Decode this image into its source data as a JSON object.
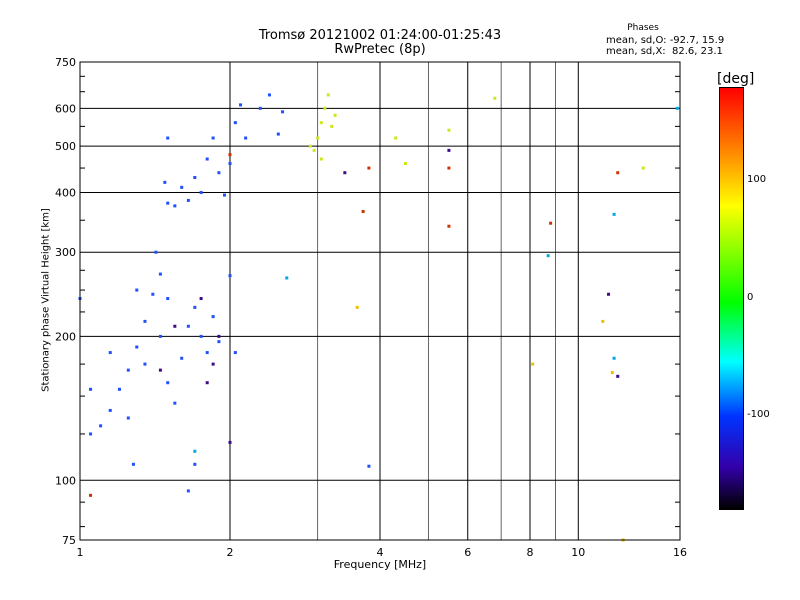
{
  "header": {
    "title_line1": "Tromsø 20121002 01:24:00-01:25:43",
    "title_line2": "RwPretec (8p)"
  },
  "phase_box": {
    "heading": "Phases",
    "line_o": "mean, sd,O: -92.7, 15.9",
    "line_x": "mean, sd,X:  82.6, 23.1"
  },
  "colorbar": {
    "title": "[deg]",
    "ticks": [
      "100",
      "0",
      "-100"
    ],
    "tick_values": [
      100,
      0,
      -100
    ],
    "range": [
      -180,
      180
    ],
    "colors": [
      "#ff0000",
      "#ff9900",
      "#ffff00",
      "#00ff00",
      "#00ffff",
      "#0033ff",
      "#3300aa",
      "#000000"
    ]
  },
  "chart_data": {
    "type": "scatter",
    "xlabel": "Frequency [MHz]",
    "ylabel": "Stationary phase Virtual Height [km]",
    "x_scale": "log",
    "y_scale": "log",
    "xlim": [
      1,
      16
    ],
    "ylim": [
      75,
      750
    ],
    "x_ticks": [
      1,
      2,
      4,
      6,
      8,
      10,
      16
    ],
    "x_tick_labels": [
      "1",
      "2",
      "4",
      "6",
      "8",
      "10",
      "16"
    ],
    "y_ticks": [
      75,
      100,
      200,
      300,
      400,
      500,
      600,
      750
    ],
    "y_tick_labels": [
      "75",
      "100",
      "200",
      "300",
      "400",
      "500",
      "600",
      "750"
    ],
    "grid": true,
    "series": [
      {
        "mode": "O",
        "color": "#1f4fff",
        "points": [
          [
            1.05,
            125
          ],
          [
            1.1,
            130
          ],
          [
            1.15,
            140
          ],
          [
            1.2,
            155
          ],
          [
            1.25,
            170
          ],
          [
            1.3,
            190
          ],
          [
            1.35,
            215
          ],
          [
            1.4,
            245
          ],
          [
            1.45,
            270
          ],
          [
            1.5,
            240
          ],
          [
            1.45,
            200
          ],
          [
            1.5,
            160
          ],
          [
            1.55,
            145
          ],
          [
            1.6,
            180
          ],
          [
            1.65,
            210
          ],
          [
            1.7,
            230
          ],
          [
            1.75,
            200
          ],
          [
            1.8,
            185
          ],
          [
            1.85,
            220
          ],
          [
            1.9,
            195
          ],
          [
            1.25,
            135
          ],
          [
            1.35,
            175
          ],
          [
            1.15,
            185
          ],
          [
            1.05,
            155
          ],
          [
            1.3,
            250
          ],
          [
            1.42,
            300
          ],
          [
            1.5,
            380
          ],
          [
            1.55,
            375
          ],
          [
            1.65,
            385
          ],
          [
            1.7,
            430
          ],
          [
            1.8,
            470
          ],
          [
            1.85,
            520
          ],
          [
            1.9,
            440
          ],
          [
            2.0,
            460
          ],
          [
            2.05,
            560
          ],
          [
            2.1,
            610
          ],
          [
            2.15,
            520
          ],
          [
            2.3,
            600
          ],
          [
            2.4,
            640
          ],
          [
            2.5,
            530
          ],
          [
            2.55,
            590
          ],
          [
            1.95,
            395
          ],
          [
            1.75,
            400
          ],
          [
            1.6,
            410
          ],
          [
            1.5,
            520
          ],
          [
            1.48,
            420
          ],
          [
            1.7,
            108
          ],
          [
            1.65,
            95
          ],
          [
            1.28,
            108
          ],
          [
            1.0,
            240
          ],
          [
            3.8,
            107
          ],
          [
            2.05,
            185
          ],
          [
            2.0,
            268
          ]
        ]
      },
      {
        "mode": "X",
        "color": "#cfe61a",
        "points": [
          [
            2.95,
            490
          ],
          [
            3.0,
            520
          ],
          [
            3.05,
            560
          ],
          [
            3.1,
            600
          ],
          [
            3.15,
            640
          ],
          [
            3.2,
            550
          ],
          [
            3.05,
            470
          ],
          [
            2.9,
            500
          ],
          [
            3.25,
            580
          ],
          [
            4.5,
            460
          ],
          [
            4.3,
            520
          ],
          [
            5.5,
            540
          ],
          [
            6.8,
            630
          ],
          [
            13.5,
            450
          ]
        ]
      },
      {
        "mode": "other",
        "color": "#cc3300",
        "points": [
          [
            12.0,
            440
          ],
          [
            5.5,
            340
          ],
          [
            3.8,
            450
          ],
          [
            5.5,
            450
          ],
          [
            8.8,
            345
          ],
          [
            1.05,
            93
          ],
          [
            2.0,
            480
          ],
          [
            3.7,
            365
          ]
        ]
      },
      {
        "mode": "other",
        "color": "#3a0a88",
        "points": [
          [
            1.8,
            160
          ],
          [
            1.75,
            240
          ],
          [
            1.9,
            200
          ],
          [
            1.85,
            175
          ],
          [
            2.0,
            120
          ],
          [
            1.45,
            170
          ],
          [
            1.55,
            210
          ],
          [
            11.5,
            245
          ],
          [
            12.0,
            165
          ],
          [
            3.4,
            440
          ],
          [
            5.5,
            490
          ]
        ]
      },
      {
        "mode": "other",
        "color": "#00a8e0",
        "points": [
          [
            11.8,
            360
          ],
          [
            2.6,
            265
          ],
          [
            1.7,
            115
          ],
          [
            8.7,
            295
          ],
          [
            15.8,
            600
          ],
          [
            11.8,
            180
          ]
        ]
      },
      {
        "mode": "other",
        "color": "#e8c200",
        "points": [
          [
            3.6,
            230
          ],
          [
            8.1,
            175
          ],
          [
            11.2,
            215
          ],
          [
            11.7,
            168
          ],
          [
            12.3,
            75
          ]
        ]
      }
    ]
  }
}
